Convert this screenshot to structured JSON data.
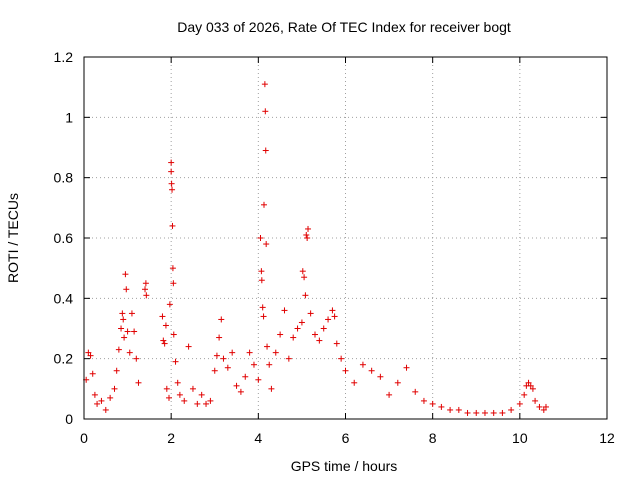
{
  "chart_data": {
    "type": "scatter",
    "title": "Day 033 of 2026, Rate Of TEC Index for receiver bogt",
    "xlabel": "GPS time / hours",
    "ylabel": "ROTI / TECUs",
    "xlim": [
      0,
      12
    ],
    "ylim": [
      0,
      1.2
    ],
    "x_ticks": [
      "0",
      "2",
      "4",
      "6",
      "8",
      "10",
      "12"
    ],
    "y_ticks": [
      "0",
      "0.2",
      "0.4",
      "0.6",
      "0.8",
      "1",
      "1.2"
    ],
    "grid": true,
    "legend": "none",
    "marker": "+",
    "colors": {
      "series": "#e00000",
      "grid": "#a0a0a0",
      "axis": "#000000"
    },
    "series": [
      {
        "points": [
          [
            0.05,
            0.13
          ],
          [
            0.1,
            0.22
          ],
          [
            0.15,
            0.21
          ],
          [
            0.2,
            0.15
          ],
          [
            0.25,
            0.08
          ],
          [
            0.3,
            0.05
          ],
          [
            0.4,
            0.06
          ],
          [
            0.5,
            0.03
          ],
          [
            0.6,
            0.07
          ],
          [
            0.7,
            0.1
          ],
          [
            0.75,
            0.16
          ],
          [
            0.8,
            0.23
          ],
          [
            0.85,
            0.3
          ],
          [
            0.88,
            0.35
          ],
          [
            0.9,
            0.33
          ],
          [
            0.92,
            0.27
          ],
          [
            0.95,
            0.48
          ],
          [
            0.97,
            0.43
          ],
          [
            1.0,
            0.29
          ],
          [
            1.05,
            0.22
          ],
          [
            1.1,
            0.35
          ],
          [
            1.15,
            0.29
          ],
          [
            1.2,
            0.2
          ],
          [
            1.25,
            0.12
          ],
          [
            1.4,
            0.43
          ],
          [
            1.42,
            0.45
          ],
          [
            1.43,
            0.41
          ],
          [
            1.8,
            0.34
          ],
          [
            1.82,
            0.26
          ],
          [
            1.85,
            0.25
          ],
          [
            1.88,
            0.31
          ],
          [
            1.9,
            0.1
          ],
          [
            1.95,
            0.07
          ],
          [
            1.97,
            0.38
          ],
          [
            2.0,
            0.85
          ],
          [
            2.0,
            0.82
          ],
          [
            2.01,
            0.78
          ],
          [
            2.02,
            0.76
          ],
          [
            2.03,
            0.64
          ],
          [
            2.04,
            0.5
          ],
          [
            2.05,
            0.45
          ],
          [
            2.06,
            0.28
          ],
          [
            2.1,
            0.19
          ],
          [
            2.15,
            0.12
          ],
          [
            2.2,
            0.08
          ],
          [
            2.3,
            0.06
          ],
          [
            2.4,
            0.24
          ],
          [
            2.5,
            0.1
          ],
          [
            2.6,
            0.05
          ],
          [
            2.7,
            0.08
          ],
          [
            2.8,
            0.05
          ],
          [
            2.9,
            0.06
          ],
          [
            3.0,
            0.16
          ],
          [
            3.05,
            0.21
          ],
          [
            3.1,
            0.27
          ],
          [
            3.15,
            0.33
          ],
          [
            3.2,
            0.2
          ],
          [
            3.3,
            0.17
          ],
          [
            3.4,
            0.22
          ],
          [
            3.5,
            0.11
          ],
          [
            3.6,
            0.09
          ],
          [
            3.7,
            0.14
          ],
          [
            3.8,
            0.22
          ],
          [
            3.9,
            0.18
          ],
          [
            4.0,
            0.13
          ],
          [
            4.05,
            0.6
          ],
          [
            4.07,
            0.49
          ],
          [
            4.08,
            0.46
          ],
          [
            4.1,
            0.37
          ],
          [
            4.12,
            0.34
          ],
          [
            4.13,
            0.71
          ],
          [
            4.15,
            1.11
          ],
          [
            4.16,
            1.02
          ],
          [
            4.17,
            0.89
          ],
          [
            4.18,
            0.58
          ],
          [
            4.2,
            0.24
          ],
          [
            4.25,
            0.18
          ],
          [
            4.3,
            0.1
          ],
          [
            4.4,
            0.22
          ],
          [
            4.5,
            0.28
          ],
          [
            4.6,
            0.36
          ],
          [
            4.7,
            0.2
          ],
          [
            4.8,
            0.27
          ],
          [
            4.9,
            0.3
          ],
          [
            5.0,
            0.32
          ],
          [
            5.02,
            0.49
          ],
          [
            5.05,
            0.47
          ],
          [
            5.08,
            0.41
          ],
          [
            5.1,
            0.61
          ],
          [
            5.12,
            0.6
          ],
          [
            5.14,
            0.63
          ],
          [
            5.2,
            0.35
          ],
          [
            5.3,
            0.28
          ],
          [
            5.4,
            0.26
          ],
          [
            5.5,
            0.3
          ],
          [
            5.6,
            0.33
          ],
          [
            5.7,
            0.36
          ],
          [
            5.75,
            0.34
          ],
          [
            5.8,
            0.25
          ],
          [
            5.9,
            0.2
          ],
          [
            6.0,
            0.16
          ],
          [
            6.2,
            0.12
          ],
          [
            6.4,
            0.18
          ],
          [
            6.6,
            0.16
          ],
          [
            6.8,
            0.14
          ],
          [
            7.0,
            0.08
          ],
          [
            7.2,
            0.12
          ],
          [
            7.4,
            0.17
          ],
          [
            7.6,
            0.09
          ],
          [
            7.8,
            0.06
          ],
          [
            8.0,
            0.05
          ],
          [
            8.2,
            0.04
          ],
          [
            8.4,
            0.03
          ],
          [
            8.6,
            0.03
          ],
          [
            8.8,
            0.02
          ],
          [
            9.0,
            0.02
          ],
          [
            9.2,
            0.02
          ],
          [
            9.4,
            0.02
          ],
          [
            9.6,
            0.02
          ],
          [
            9.8,
            0.03
          ],
          [
            10.0,
            0.05
          ],
          [
            10.1,
            0.08
          ],
          [
            10.15,
            0.11
          ],
          [
            10.2,
            0.12
          ],
          [
            10.25,
            0.11
          ],
          [
            10.3,
            0.1
          ],
          [
            10.35,
            0.06
          ],
          [
            10.45,
            0.04
          ],
          [
            10.55,
            0.03
          ],
          [
            10.6,
            0.04
          ]
        ]
      }
    ]
  }
}
